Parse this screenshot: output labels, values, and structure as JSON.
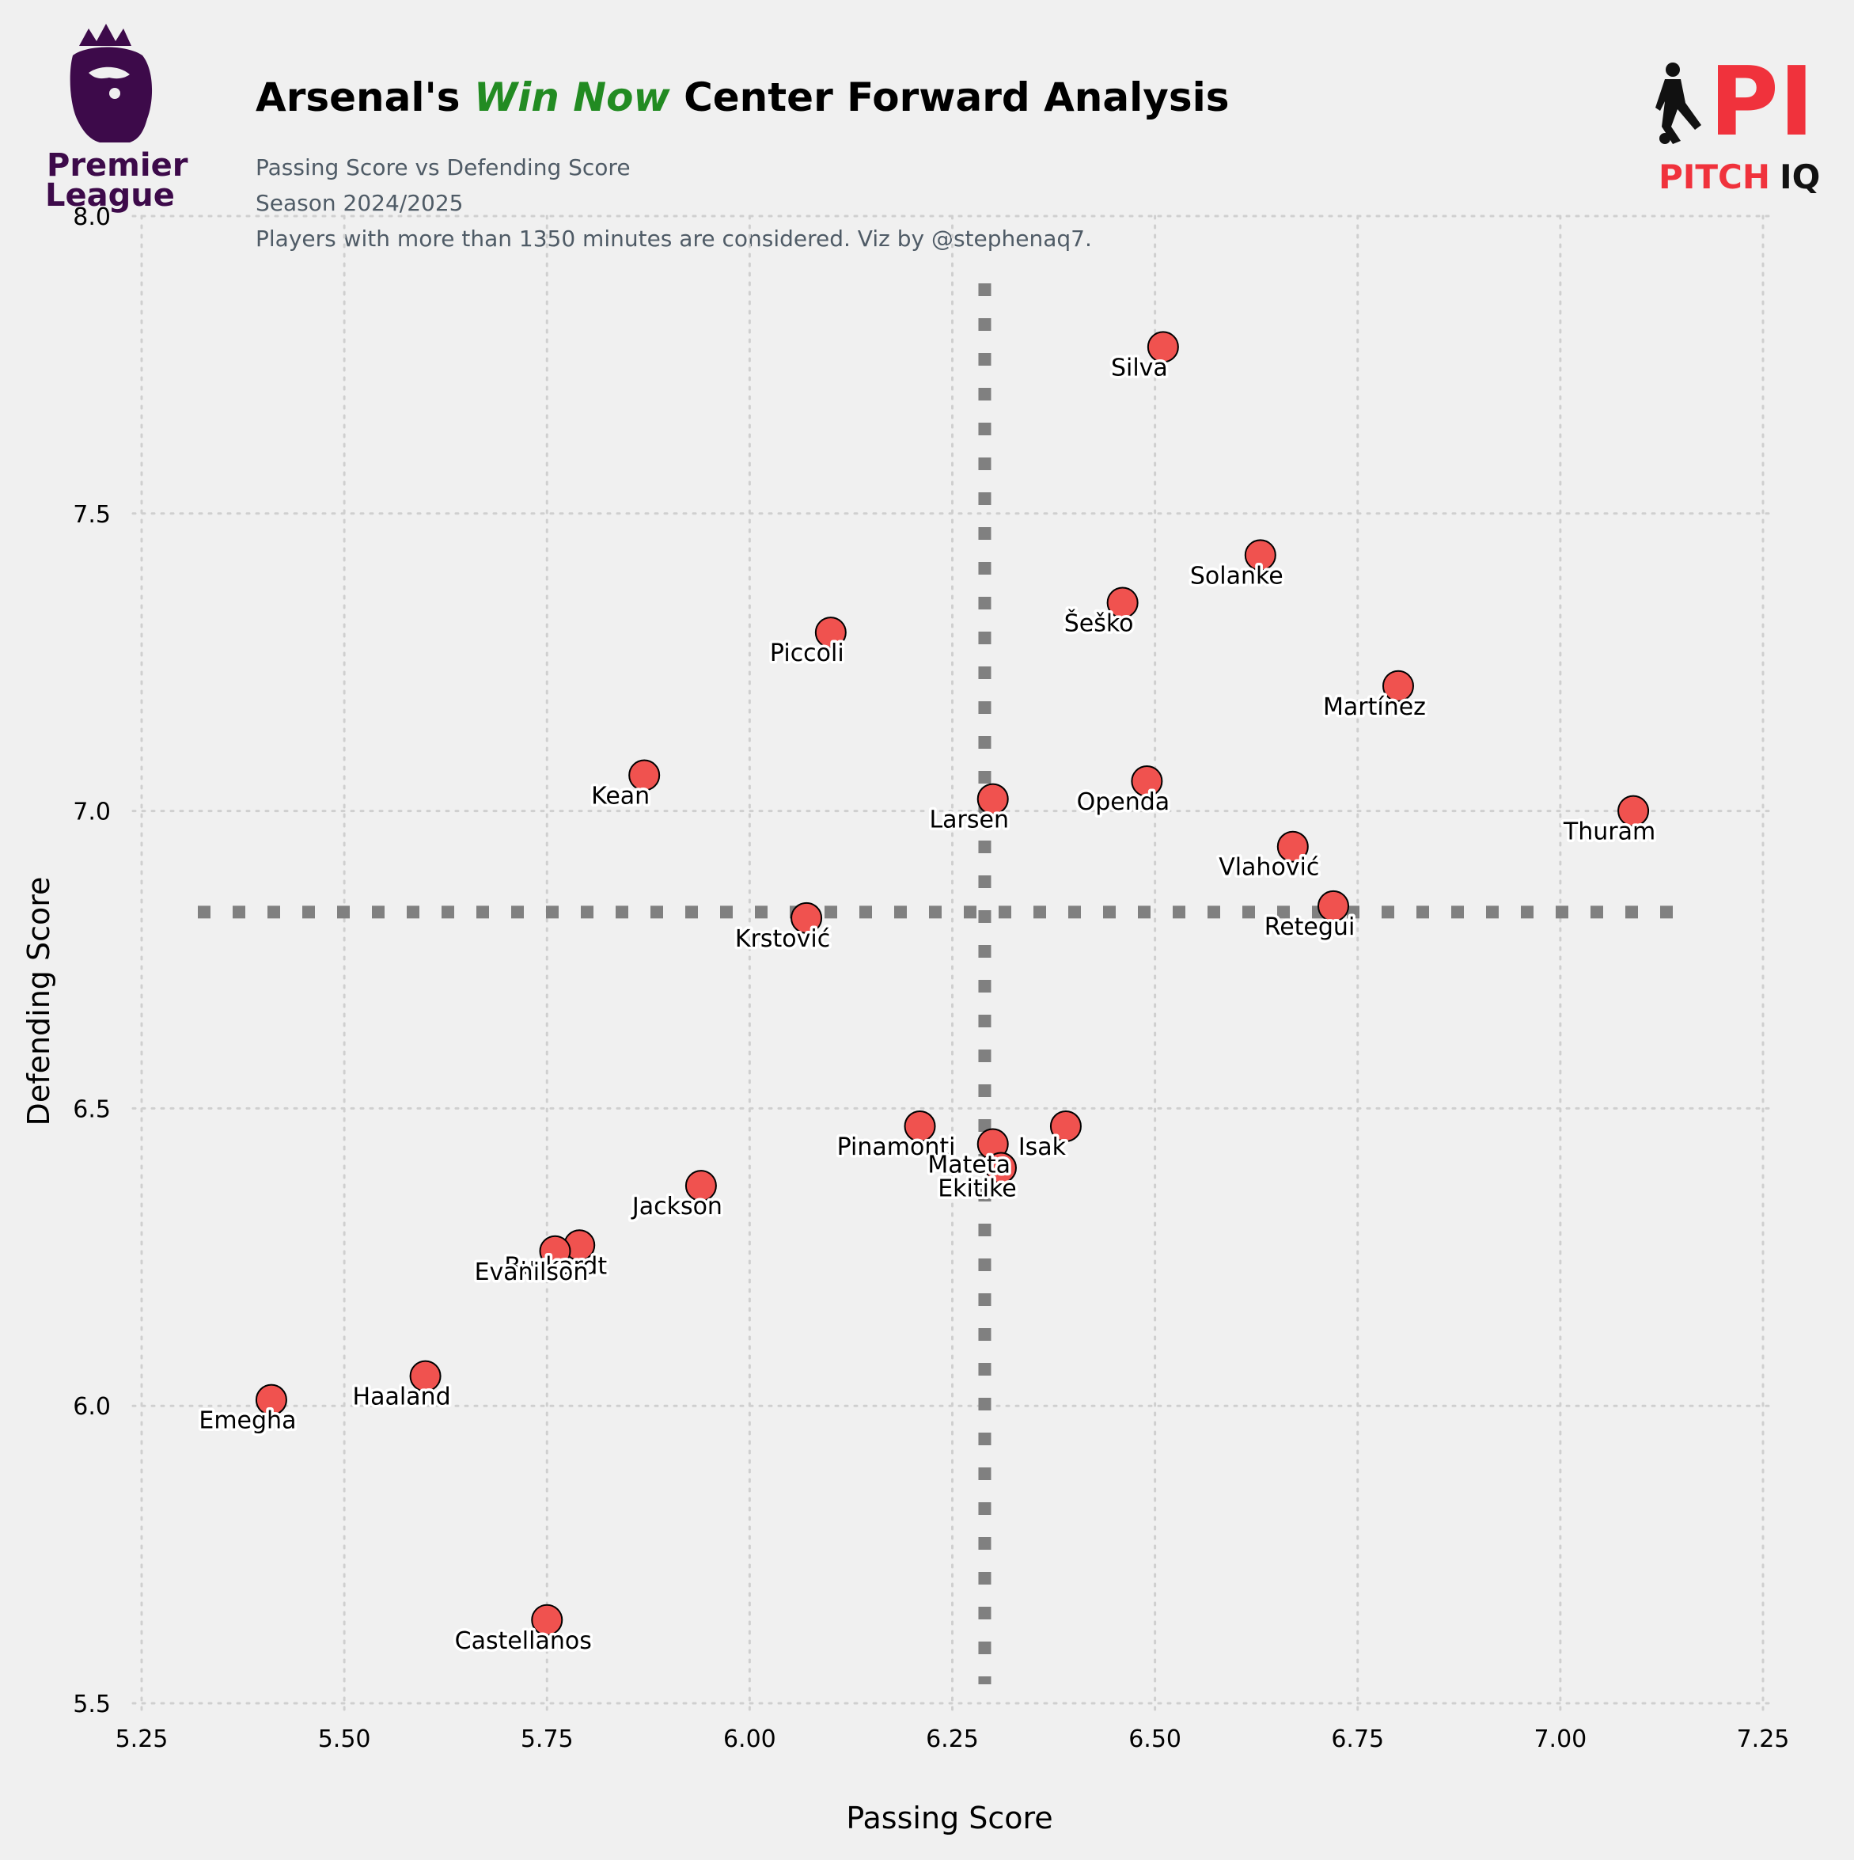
{
  "header": {
    "title_before": "Arsenal's ",
    "title_accent": "Win Now",
    "title_after": " Center Forward Analysis",
    "subtitle_1": "Passing Score vs Defending Score",
    "subtitle_2": "Season 2024/2025",
    "subtitle_3": "Players with more than 1350 minutes are considered. Viz by @stephenaq7."
  },
  "logos": {
    "left": {
      "line1": "Premier",
      "line2": "League",
      "color": "#3d0a4a"
    },
    "right": {
      "mark": "PI",
      "word1": "PITCH",
      "word2": "IQ",
      "red": "#f0323c",
      "black": "#111111"
    }
  },
  "colors": {
    "background": "#f0f0f0",
    "point_fill": "#f0524f",
    "point_edge": "#000000",
    "accent_green": "#228b22",
    "reference_line": "#808080",
    "grid": "#cfcfcf"
  },
  "chart_data": {
    "type": "scatter",
    "title": "Arsenal's Win Now Center Forward Analysis",
    "xlabel": "Passing Score",
    "ylabel": "Defending Score",
    "xlim": [
      5.25,
      7.25
    ],
    "ylim": [
      5.5,
      8.0
    ],
    "xticks": [
      "5.25",
      "5.50",
      "5.75",
      "6.00",
      "6.25",
      "6.50",
      "6.75",
      "7.00",
      "7.25"
    ],
    "yticks": [
      "5.5",
      "6.0",
      "6.5",
      "7.0",
      "7.5",
      "8.0"
    ],
    "grid": true,
    "reference_lines": {
      "x": 6.29,
      "y": 6.83
    },
    "points": [
      {
        "name": "Silva",
        "x": 6.51,
        "y": 7.78
      },
      {
        "name": "Solanke",
        "x": 6.63,
        "y": 7.43
      },
      {
        "name": "Šeško",
        "x": 6.46,
        "y": 7.35
      },
      {
        "name": "Piccoli",
        "x": 6.1,
        "y": 7.3
      },
      {
        "name": "Martínez",
        "x": 6.8,
        "y": 7.21
      },
      {
        "name": "Kean",
        "x": 5.87,
        "y": 7.06
      },
      {
        "name": "Openda",
        "x": 6.49,
        "y": 7.05
      },
      {
        "name": "Larsen",
        "x": 6.3,
        "y": 7.02
      },
      {
        "name": "Thuram",
        "x": 7.09,
        "y": 7.0
      },
      {
        "name": "Vlahović",
        "x": 6.67,
        "y": 6.94
      },
      {
        "name": "Retegui",
        "x": 6.72,
        "y": 6.84
      },
      {
        "name": "Krstović",
        "x": 6.07,
        "y": 6.82
      },
      {
        "name": "Isak",
        "x": 6.39,
        "y": 6.47
      },
      {
        "name": "Pinamonti",
        "x": 6.21,
        "y": 6.47
      },
      {
        "name": "Mateta",
        "x": 6.3,
        "y": 6.44
      },
      {
        "name": "Ekitike",
        "x": 6.31,
        "y": 6.4
      },
      {
        "name": "Jackson",
        "x": 5.94,
        "y": 6.37
      },
      {
        "name": "Burkardt",
        "x": 5.79,
        "y": 6.27
      },
      {
        "name": "Evanilson",
        "x": 5.76,
        "y": 6.26
      },
      {
        "name": "Haaland",
        "x": 5.6,
        "y": 6.05
      },
      {
        "name": "Emegha",
        "x": 5.41,
        "y": 6.01
      },
      {
        "name": "Castellanos",
        "x": 5.75,
        "y": 5.64
      }
    ]
  }
}
